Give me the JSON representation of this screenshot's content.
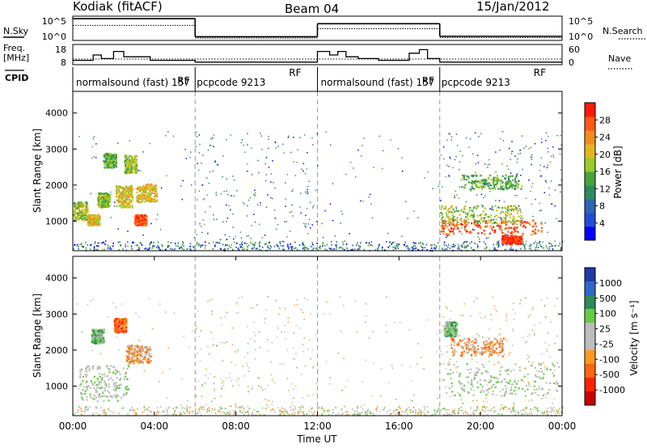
{
  "header": {
    "station": "Kodiak (fitACF)",
    "beam": "Beam 04",
    "date": "15/Jan/2012"
  },
  "panels": {
    "nsky_label": "N.Sky",
    "nsearch_label": "N.Search",
    "freq_label_1": "Freq.",
    "freq_label_2": "[MHz]",
    "nave_label": "Nave",
    "cpid_label": "CPID",
    "power_label": "Power [dB]",
    "velocity_label": "Velocity [m s⁻¹]",
    "xlabel": "Time UT",
    "ylabel": "Slant Range [km]"
  },
  "chart_data": [
    {
      "type": "line",
      "name": "noise",
      "yticks_left": [
        "10^5",
        "10^0"
      ],
      "yticks_right": [
        "10^5",
        "10^0"
      ],
      "segments": [
        {
          "x": [
            0,
            6
          ],
          "nsky": 4.8,
          "nsearch": 3.2
        },
        {
          "x": [
            6,
            12
          ],
          "nsky": 0.5,
          "nsearch": 0.2
        },
        {
          "x": [
            12,
            18
          ],
          "nsky": 3.6,
          "nsearch": 2.4
        },
        {
          "x": [
            18,
            24
          ],
          "nsky": 0.6,
          "nsearch": 0.3
        }
      ]
    },
    {
      "type": "line",
      "name": "frequency",
      "yticks_left": [
        18,
        8
      ],
      "yticks_right": [
        60,
        0
      ],
      "freq_steps": [
        {
          "x": [
            0.0,
            1.0
          ],
          "v": 10
        },
        {
          "x": [
            1.0,
            1.4
          ],
          "v": 13
        },
        {
          "x": [
            1.4,
            2.0
          ],
          "v": 11
        },
        {
          "x": [
            2.0,
            2.5
          ],
          "v": 15
        },
        {
          "x": [
            2.5,
            3.2
          ],
          "v": 12
        },
        {
          "x": [
            3.2,
            3.8
          ],
          "v": 12
        },
        {
          "x": [
            3.8,
            4.5
          ],
          "v": 10
        },
        {
          "x": [
            4.5,
            6.0
          ],
          "v": 10
        },
        {
          "x": [
            6.0,
            12.0
          ],
          "v": 9
        },
        {
          "x": [
            12.0,
            12.6
          ],
          "v": 15
        },
        {
          "x": [
            12.6,
            13.0
          ],
          "v": 13
        },
        {
          "x": [
            13.0,
            13.4
          ],
          "v": 15
        },
        {
          "x": [
            13.4,
            14.0
          ],
          "v": 12
        },
        {
          "x": [
            14.0,
            15.0
          ],
          "v": 11
        },
        {
          "x": [
            15.0,
            16.5
          ],
          "v": 10
        },
        {
          "x": [
            16.5,
            17.0
          ],
          "v": 14
        },
        {
          "x": [
            17.0,
            17.4
          ],
          "v": 16
        },
        {
          "x": [
            17.4,
            18.0
          ],
          "v": 11
        },
        {
          "x": [
            18.0,
            24.0
          ],
          "v": 9
        }
      ]
    },
    {
      "type": "table",
      "name": "cpid",
      "segments": [
        {
          "x": [
            0,
            6
          ],
          "label": "normalsound (fast) 157"
        },
        {
          "x": [
            6,
            12
          ],
          "label": "pcpcode 9213"
        },
        {
          "x": [
            12,
            18
          ],
          "label": "normalsound (fast) 157"
        },
        {
          "x": [
            18,
            24
          ],
          "label": "pcpcode 9213"
        }
      ],
      "rf_label": "RF"
    },
    {
      "type": "heatmap",
      "name": "power",
      "xlabel": "",
      "ylabel": "Slant Range [km]",
      "yticks": [
        1000,
        2000,
        3000,
        4000
      ],
      "ylim": [
        180,
        4600
      ],
      "colorbar_title": "Power [dB]",
      "colorbar_ticks": [
        "4",
        "8",
        "12",
        "16",
        "20",
        "24",
        "28"
      ],
      "colorbar_colors": [
        "#0000ff",
        "#1f4fd6",
        "#2f66b2",
        "#2f8a5e",
        "#49a33d",
        "#9ccc2a",
        "#e2b822",
        "#f28c1e",
        "#ff5a14",
        "#ff1a0a"
      ],
      "blobs": [
        {
          "t": 0.3,
          "r": 1300,
          "dt": 0.4,
          "dr": 250,
          "level": 5
        },
        {
          "t": 1.0,
          "r": 1050,
          "dt": 0.3,
          "dr": 150,
          "level": 6
        },
        {
          "t": 1.5,
          "r": 1600,
          "dt": 0.3,
          "dr": 200,
          "level": 5
        },
        {
          "t": 2.5,
          "r": 1700,
          "dt": 0.4,
          "dr": 300,
          "level": 6
        },
        {
          "t": 3.3,
          "r": 1050,
          "dt": 0.3,
          "dr": 150,
          "level": 8
        },
        {
          "t": 3.6,
          "r": 1800,
          "dt": 0.5,
          "dr": 250,
          "level": 6
        },
        {
          "t": 2.8,
          "r": 2600,
          "dt": 0.3,
          "dr": 250,
          "level": 5
        },
        {
          "t": 1.8,
          "r": 2700,
          "dt": 0.3,
          "dr": 200,
          "level": 4
        },
        {
          "t": 20.5,
          "r": 850,
          "dt": 2.5,
          "dr": 200,
          "level": 8
        },
        {
          "t": 20.0,
          "r": 1200,
          "dt": 2.0,
          "dr": 250,
          "level": 5
        },
        {
          "t": 21.5,
          "r": 500,
          "dt": 0.5,
          "dr": 120,
          "level": 9
        },
        {
          "t": 20.5,
          "r": 2100,
          "dt": 1.5,
          "dr": 200,
          "level": 4
        }
      ]
    },
    {
      "type": "heatmap",
      "name": "velocity",
      "xlabel": "Time UT",
      "ylabel": "Slant Range [km]",
      "xticks": [
        "00:00",
        "04:00",
        "08:00",
        "12:00",
        "16:00",
        "20:00",
        "00:00"
      ],
      "xlim": [
        0,
        24
      ],
      "yticks": [
        1000,
        2000,
        3000,
        4000
      ],
      "ylim": [
        180,
        4600
      ],
      "colorbar_title": "Velocity [m s⁻¹]",
      "colorbar_ticks": [
        "1000",
        "500",
        "100",
        "25",
        "-25",
        "-100",
        "-500",
        "-1000"
      ],
      "colorbar_colors": [
        "#1e3aa8",
        "#3366cc",
        "#2e8b57",
        "#66cc44",
        "#bdbdbd",
        "#bdbdbd",
        "#ff9922",
        "#ff6611",
        "#ff2200",
        "#cc0000"
      ],
      "blobs": [
        {
          "t": 1.5,
          "r": 1100,
          "dt": 1.2,
          "dr": 500,
          "level": 4
        },
        {
          "t": 3.2,
          "r": 1900,
          "dt": 0.6,
          "dr": 250,
          "level": 6
        },
        {
          "t": 2.3,
          "r": 2700,
          "dt": 0.3,
          "dr": 200,
          "level": 7
        },
        {
          "t": 1.2,
          "r": 2400,
          "dt": 0.3,
          "dr": 200,
          "level": 3
        },
        {
          "t": 21.0,
          "r": 1200,
          "dt": 2.8,
          "dr": 450,
          "level": 4
        },
        {
          "t": 19.8,
          "r": 2100,
          "dt": 1.3,
          "dr": 250,
          "level": 6
        },
        {
          "t": 18.5,
          "r": 2600,
          "dt": 0.3,
          "dr": 200,
          "level": 3
        }
      ]
    }
  ]
}
